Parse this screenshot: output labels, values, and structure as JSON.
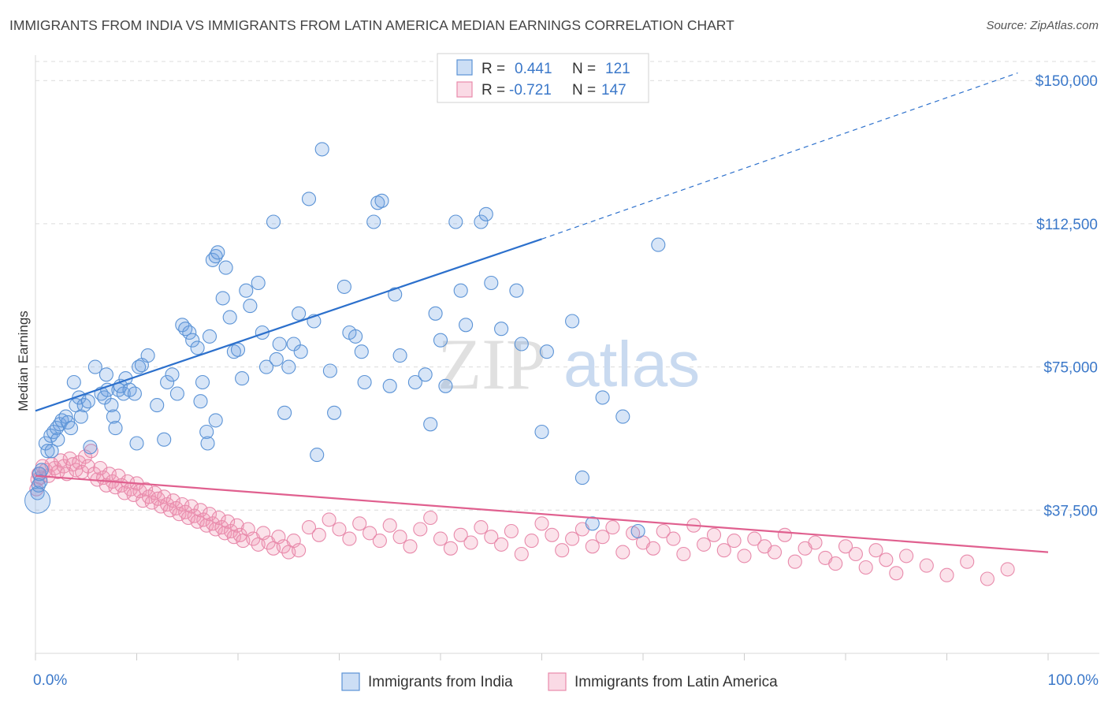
{
  "header": {
    "title": "IMMIGRANTS FROM INDIA VS IMMIGRANTS FROM LATIN AMERICA MEDIAN EARNINGS CORRELATION CHART",
    "source": "Source: ZipAtlas.com"
  },
  "watermark": {
    "zip": "ZIP",
    "atlas": "atlas"
  },
  "stats": {
    "india": {
      "r_label": "R =",
      "r_value": "0.441",
      "n_label": "N =",
      "n_value": "121"
    },
    "latam": {
      "r_label": "R =",
      "r_value": "-0.721",
      "n_label": "N =",
      "n_value": "147"
    }
  },
  "colors": {
    "india": "#5b93d6",
    "india_fill": "rgba(110,160,225,0.28)",
    "india_line": "#2c70cc",
    "latam": "#e88aab",
    "latam_fill": "rgba(240,150,180,0.28)",
    "latam_line": "#e0608f",
    "grid": "#dcdcdc",
    "tick_text": "#3b78c9"
  },
  "chart_data": {
    "type": "scatter",
    "title": "IMMIGRANTS FROM INDIA VS IMMIGRANTS FROM LATIN AMERICA MEDIAN EARNINGS CORRELATION CHART",
    "xlabel": "",
    "ylabel": "Median Earnings",
    "xlim": [
      0,
      100
    ],
    "ylim": [
      0,
      155000
    ],
    "x_tick_labels": [
      "0.0%",
      "100.0%"
    ],
    "y_ticks": [
      37500,
      75000,
      112500,
      150000
    ],
    "y_tick_labels": [
      "$37,500",
      "$75,000",
      "$112,500",
      "$150,000"
    ],
    "grid": "horizontal dashed",
    "legend_position": "bottom-center",
    "series": [
      {
        "name": "Immigrants from India",
        "trend": {
          "x0": 0,
          "y0": 63500,
          "x1": 50,
          "y1": 108500,
          "dashed_to_x": 97,
          "dashed_to_y": 152000
        },
        "points": [
          [
            0.2,
            42000
          ],
          [
            0.3,
            44000
          ],
          [
            0.4,
            47000
          ],
          [
            0.5,
            45000
          ],
          [
            0.6,
            48000
          ],
          [
            1.0,
            55000
          ],
          [
            1.2,
            53000
          ],
          [
            1.5,
            57000
          ],
          [
            1.6,
            53000
          ],
          [
            1.8,
            58000
          ],
          [
            2.1,
            59000
          ],
          [
            2.2,
            56000
          ],
          [
            2.4,
            60000
          ],
          [
            2.6,
            61000
          ],
          [
            3.0,
            62000
          ],
          [
            3.2,
            60500
          ],
          [
            3.5,
            59000
          ],
          [
            3.8,
            71000
          ],
          [
            4.0,
            65000
          ],
          [
            4.3,
            67000
          ],
          [
            4.5,
            62000
          ],
          [
            4.8,
            65000
          ],
          [
            5.2,
            66000
          ],
          [
            5.4,
            54000
          ],
          [
            5.9,
            75000
          ],
          [
            6.5,
            68000
          ],
          [
            6.8,
            67000
          ],
          [
            7.0,
            73000
          ],
          [
            7.1,
            69000
          ],
          [
            7.5,
            65000
          ],
          [
            7.7,
            62000
          ],
          [
            7.9,
            59000
          ],
          [
            8.2,
            69000
          ],
          [
            8.4,
            70000
          ],
          [
            8.7,
            68000
          ],
          [
            8.9,
            72000
          ],
          [
            9.3,
            69000
          ],
          [
            9.8,
            68000
          ],
          [
            10.0,
            55000
          ],
          [
            10.2,
            75000
          ],
          [
            10.5,
            75500
          ],
          [
            11.1,
            78000
          ],
          [
            12.0,
            65000
          ],
          [
            12.7,
            56000
          ],
          [
            13.0,
            71000
          ],
          [
            13.5,
            73000
          ],
          [
            14.0,
            68000
          ],
          [
            14.5,
            86000
          ],
          [
            14.8,
            85000
          ],
          [
            15.2,
            84000
          ],
          [
            15.5,
            82000
          ],
          [
            16.0,
            80000
          ],
          [
            16.3,
            66000
          ],
          [
            16.5,
            71000
          ],
          [
            16.9,
            58000
          ],
          [
            17.2,
            83000
          ],
          [
            17.5,
            103000
          ],
          [
            17.8,
            104000
          ],
          [
            18.0,
            105000
          ],
          [
            18.5,
            93000
          ],
          [
            18.8,
            101000
          ],
          [
            19.2,
            88000
          ],
          [
            19.6,
            79000
          ],
          [
            20.0,
            79500
          ],
          [
            20.4,
            72000
          ],
          [
            20.8,
            95000
          ],
          [
            21.2,
            91000
          ],
          [
            22.0,
            97000
          ],
          [
            22.4,
            84000
          ],
          [
            22.8,
            75000
          ],
          [
            23.5,
            113000
          ],
          [
            23.8,
            77000
          ],
          [
            24.1,
            81000
          ],
          [
            24.6,
            63000
          ],
          [
            25.0,
            75000
          ],
          [
            25.5,
            81000
          ],
          [
            26.0,
            89000
          ],
          [
            26.2,
            79000
          ],
          [
            27.0,
            119000
          ],
          [
            27.5,
            87000
          ],
          [
            27.8,
            52000
          ],
          [
            28.3,
            132000
          ],
          [
            29.1,
            74000
          ],
          [
            29.5,
            63000
          ],
          [
            30.5,
            96000
          ],
          [
            31.0,
            84000
          ],
          [
            31.6,
            83000
          ],
          [
            32.2,
            79000
          ],
          [
            32.5,
            71000
          ],
          [
            33.4,
            113000
          ],
          [
            33.8,
            118000
          ],
          [
            34.2,
            118500
          ],
          [
            35.0,
            70000
          ],
          [
            35.5,
            94000
          ],
          [
            36.0,
            78000
          ],
          [
            37.5,
            71000
          ],
          [
            38.5,
            73000
          ],
          [
            39.0,
            60000
          ],
          [
            39.5,
            89000
          ],
          [
            40.0,
            82000
          ],
          [
            40.5,
            70000
          ],
          [
            41.5,
            113000
          ],
          [
            42.0,
            95000
          ],
          [
            42.5,
            86000
          ],
          [
            44.0,
            113000
          ],
          [
            44.5,
            115000
          ],
          [
            45.0,
            97000
          ],
          [
            46.0,
            85000
          ],
          [
            47.5,
            95000
          ],
          [
            48.0,
            81000
          ],
          [
            50.0,
            58000
          ],
          [
            50.5,
            79000
          ],
          [
            53.0,
            87000
          ],
          [
            54.0,
            46000
          ],
          [
            55.0,
            34000
          ],
          [
            56.0,
            67000
          ],
          [
            58.0,
            62000
          ],
          [
            59.5,
            32000
          ],
          [
            61.5,
            107000
          ],
          [
            17.0,
            55000
          ],
          [
            17.8,
            61000
          ]
        ]
      },
      {
        "name": "Immigrants from Latin America",
        "trend": {
          "x0": 0,
          "y0": 46500,
          "x1": 100,
          "y1": 26500
        },
        "points": [
          [
            0.1,
            43000
          ],
          [
            0.2,
            45500
          ],
          [
            0.3,
            47000
          ],
          [
            0.5,
            46000
          ],
          [
            0.7,
            49000
          ],
          [
            1.0,
            48000
          ],
          [
            1.3,
            46500
          ],
          [
            1.6,
            49500
          ],
          [
            1.9,
            48500
          ],
          [
            2.2,
            47500
          ],
          [
            2.5,
            50500
          ],
          [
            2.8,
            49000
          ],
          [
            3.1,
            47000
          ],
          [
            3.4,
            51000
          ],
          [
            3.7,
            49500
          ],
          [
            4.0,
            48000
          ],
          [
            4.3,
            50000
          ],
          [
            4.6,
            47500
          ],
          [
            4.9,
            51500
          ],
          [
            5.2,
            49000
          ],
          [
            5.5,
            53000
          ],
          [
            5.8,
            47000
          ],
          [
            6.1,
            45500
          ],
          [
            6.4,
            48500
          ],
          [
            6.7,
            46000
          ],
          [
            7.0,
            44000
          ],
          [
            7.3,
            47000
          ],
          [
            7.6,
            45000
          ],
          [
            7.9,
            43500
          ],
          [
            8.2,
            46500
          ],
          [
            8.5,
            44000
          ],
          [
            8.8,
            42000
          ],
          [
            9.1,
            45000
          ],
          [
            9.4,
            43000
          ],
          [
            9.7,
            41500
          ],
          [
            10.0,
            44500
          ],
          [
            10.3,
            42500
          ],
          [
            10.6,
            40000
          ],
          [
            10.9,
            43000
          ],
          [
            11.2,
            41000
          ],
          [
            11.5,
            39500
          ],
          [
            11.8,
            42000
          ],
          [
            12.1,
            40500
          ],
          [
            12.4,
            38500
          ],
          [
            12.7,
            41000
          ],
          [
            13.0,
            39000
          ],
          [
            13.3,
            37500
          ],
          [
            13.6,
            40000
          ],
          [
            13.9,
            38000
          ],
          [
            14.2,
            36500
          ],
          [
            14.5,
            39000
          ],
          [
            14.8,
            37000
          ],
          [
            15.1,
            35500
          ],
          [
            15.4,
            38500
          ],
          [
            15.7,
            36000
          ],
          [
            16.0,
            34500
          ],
          [
            16.3,
            37500
          ],
          [
            16.6,
            35000
          ],
          [
            16.9,
            33500
          ],
          [
            17.2,
            36500
          ],
          [
            17.5,
            34000
          ],
          [
            17.8,
            32500
          ],
          [
            18.1,
            35500
          ],
          [
            18.4,
            33000
          ],
          [
            18.7,
            31500
          ],
          [
            19.0,
            34500
          ],
          [
            19.3,
            32000
          ],
          [
            19.6,
            30500
          ],
          [
            19.9,
            33500
          ],
          [
            20.2,
            31000
          ],
          [
            20.5,
            29500
          ],
          [
            21.0,
            32500
          ],
          [
            21.5,
            30000
          ],
          [
            22.0,
            28500
          ],
          [
            22.5,
            31500
          ],
          [
            23.0,
            29000
          ],
          [
            23.5,
            27500
          ],
          [
            24.0,
            30500
          ],
          [
            24.5,
            28000
          ],
          [
            25.0,
            26500
          ],
          [
            25.5,
            29500
          ],
          [
            26.0,
            27000
          ],
          [
            27.0,
            33000
          ],
          [
            28.0,
            31000
          ],
          [
            29.0,
            35000
          ],
          [
            30.0,
            32500
          ],
          [
            31.0,
            30000
          ],
          [
            32.0,
            34000
          ],
          [
            33.0,
            31500
          ],
          [
            34.0,
            29500
          ],
          [
            35.0,
            33500
          ],
          [
            36.0,
            30500
          ],
          [
            37.0,
            28000
          ],
          [
            38.0,
            32500
          ],
          [
            39.0,
            35500
          ],
          [
            40.0,
            30000
          ],
          [
            41.0,
            27500
          ],
          [
            42.0,
            31000
          ],
          [
            43.0,
            29000
          ],
          [
            44.0,
            33000
          ],
          [
            45.0,
            30500
          ],
          [
            46.0,
            28500
          ],
          [
            47.0,
            32000
          ],
          [
            48.0,
            26000
          ],
          [
            49.0,
            29500
          ],
          [
            50.0,
            34000
          ],
          [
            51.0,
            31000
          ],
          [
            52.0,
            27000
          ],
          [
            53.0,
            30000
          ],
          [
            54.0,
            32500
          ],
          [
            55.0,
            28000
          ],
          [
            56.0,
            30500
          ],
          [
            57.0,
            33000
          ],
          [
            58.0,
            26500
          ],
          [
            59.0,
            31500
          ],
          [
            60.0,
            29000
          ],
          [
            61.0,
            27500
          ],
          [
            62.0,
            32000
          ],
          [
            63.0,
            30000
          ],
          [
            64.0,
            26000
          ],
          [
            65.0,
            33500
          ],
          [
            66.0,
            28500
          ],
          [
            67.0,
            31000
          ],
          [
            68.0,
            27000
          ],
          [
            69.0,
            29500
          ],
          [
            70.0,
            25500
          ],
          [
            71.0,
            30000
          ],
          [
            72.0,
            28000
          ],
          [
            73.0,
            26500
          ],
          [
            74.0,
            31000
          ],
          [
            75.0,
            24000
          ],
          [
            76.0,
            27500
          ],
          [
            77.0,
            29000
          ],
          [
            78.0,
            25000
          ],
          [
            79.0,
            23500
          ],
          [
            80.0,
            28000
          ],
          [
            81.0,
            26000
          ],
          [
            82.0,
            22500
          ],
          [
            83.0,
            27000
          ],
          [
            84.0,
            24500
          ],
          [
            85.0,
            21000
          ],
          [
            86.0,
            25500
          ],
          [
            88.0,
            23000
          ],
          [
            90.0,
            20500
          ],
          [
            92.0,
            24000
          ],
          [
            94.0,
            19500
          ],
          [
            96.0,
            22000
          ]
        ]
      }
    ]
  },
  "legend": {
    "items": [
      {
        "label": "Immigrants from India"
      },
      {
        "label": "Immigrants from Latin America"
      }
    ]
  }
}
